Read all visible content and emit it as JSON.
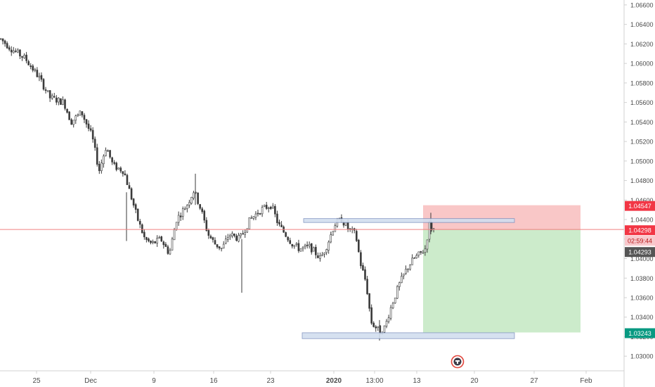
{
  "chart_data": {
    "type": "candlestick",
    "title": "",
    "xlabel": "",
    "ylabel": "",
    "ylim": [
      1.0285,
      1.0665
    ],
    "grid": false,
    "legend": "none",
    "y_ticks": [
      "1.06600",
      "1.06400",
      "1.06200",
      "1.06000",
      "1.05800",
      "1.05600",
      "1.05400",
      "1.05200",
      "1.05000",
      "1.04800",
      "1.04600",
      "1.04400",
      "1.04200",
      "1.04000",
      "1.03800",
      "1.03600",
      "1.03400",
      "1.03200",
      "1.03000"
    ],
    "x_ticks": [
      {
        "label": "25",
        "bold": false
      },
      {
        "label": "Dec",
        "bold": false
      },
      {
        "label": "9",
        "bold": false
      },
      {
        "label": "16",
        "bold": false
      },
      {
        "label": "23",
        "bold": false
      },
      {
        "label": "2020",
        "bold": true
      },
      {
        "label": "13:00",
        "bold": false
      },
      {
        "label": "13",
        "bold": false
      },
      {
        "label": "20",
        "bold": false
      },
      {
        "label": "27",
        "bold": false
      },
      {
        "label": "Feb",
        "bold": false
      }
    ],
    "price_path": [
      [
        0,
        1.0625
      ],
      [
        15,
        1.0615
      ],
      [
        35,
        1.0605
      ],
      [
        55,
        1.0585
      ],
      [
        70,
        1.0565
      ],
      [
        90,
        1.056
      ],
      [
        100,
        1.054
      ],
      [
        115,
        1.055
      ],
      [
        130,
        1.0525
      ],
      [
        140,
        1.049
      ],
      [
        150,
        1.0515
      ],
      [
        160,
        1.0495
      ],
      [
        175,
        1.049
      ],
      [
        185,
        1.0465
      ],
      [
        195,
        1.044
      ],
      [
        205,
        1.042
      ],
      [
        215,
        1.0415
      ],
      [
        228,
        1.042
      ],
      [
        240,
        1.0405
      ],
      [
        250,
        1.044
      ],
      [
        265,
        1.0455
      ],
      [
        275,
        1.047
      ],
      [
        285,
        1.045
      ],
      [
        295,
        1.0425
      ],
      [
        305,
        1.0415
      ],
      [
        315,
        1.041
      ],
      [
        325,
        1.0425
      ],
      [
        340,
        1.042
      ],
      [
        355,
        1.044
      ],
      [
        370,
        1.045
      ],
      [
        385,
        1.0455
      ],
      [
        395,
        1.0435
      ],
      [
        405,
        1.0425
      ],
      [
        415,
        1.0415
      ],
      [
        425,
        1.041
      ],
      [
        440,
        1.0412
      ],
      [
        455,
        1.04
      ],
      [
        465,
        1.0415
      ],
      [
        475,
        1.0435
      ],
      [
        485,
        1.044
      ],
      [
        495,
        1.043
      ],
      [
        505,
        1.0425
      ],
      [
        512,
        1.0395
      ],
      [
        520,
        1.0375
      ],
      [
        527,
        1.0335
      ],
      [
        533,
        1.033
      ],
      [
        540,
        1.0325
      ],
      [
        547,
        1.033
      ],
      [
        553,
        1.0345
      ],
      [
        560,
        1.036
      ],
      [
        568,
        1.0375
      ],
      [
        578,
        1.039
      ],
      [
        588,
        1.04
      ],
      [
        597,
        1.0405
      ],
      [
        604,
        1.041
      ],
      [
        610,
        1.0435
      ],
      [
        614,
        1.043
      ],
      [
        617,
        1.043
      ]
    ],
    "annotations": {
      "short_position": {
        "entry": 1.04298,
        "stop": 1.04547,
        "target": 1.03243
      },
      "resistance_zone": {
        "top": 1.0441,
        "bottom": 1.0437
      },
      "support_zone": {
        "top": 1.0324,
        "bottom": 1.0318
      },
      "price_line": 1.04298
    },
    "price_labels": {
      "stop_label": "1.04547",
      "current_label": "1.04298",
      "countdown_label": "02:59:44",
      "prev_label": "1.04293",
      "target_label": "1.03243"
    },
    "colors": {
      "up": "#ffffff",
      "down": "#3a3a3a",
      "wick": "#3a3a3a",
      "price_line": "#f08080",
      "stop_zone": "#f8bdbd",
      "target_zone": "#c6e9c5",
      "sr_zone_fill": "#d2deef",
      "sr_zone_stroke": "#7b8fbd",
      "stop_label_bg": "#f23645",
      "current_label_bg": "#f23645",
      "countdown_label_bg": "#f8c8cc",
      "prev_label_bg": "#555555",
      "target_label_bg": "#089981",
      "axis_text": "#4a4a4a",
      "axis_line": "#d0d0d0"
    }
  }
}
